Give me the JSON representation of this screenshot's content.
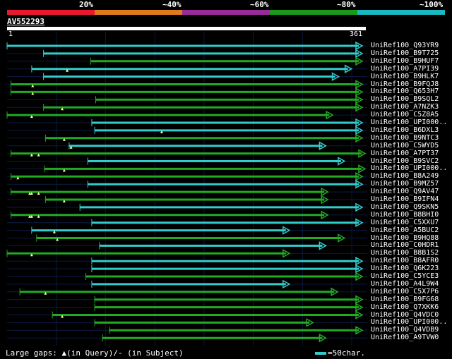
{
  "colors": {
    "scale": [
      "#e8182e",
      "#e07a1e",
      "#9a2a9a",
      "#1a9a1a",
      "#1ab8c0"
    ],
    "hit_cyan": "#33cccc",
    "hit_green": "#22aa22",
    "grid": "#0a1a3a",
    "gap_marker": "#ffff99"
  },
  "header": {
    "pct_labels": [
      "20%",
      "~40%",
      "~60%",
      "~80%",
      "~100%"
    ],
    "query_name": "AV552293",
    "ruler_start": "1",
    "ruler_end": "361"
  },
  "hits": [
    {
      "label": "UniRef100_Q93YR9",
      "start": 1,
      "end": 361,
      "color": "cyan",
      "gaps": []
    },
    {
      "label": "UniRef100_B9T725",
      "start": 38,
      "end": 361,
      "color": "cyan",
      "gaps": []
    },
    {
      "label": "UniRef100_B9HUF7",
      "start": 86,
      "end": 361,
      "color": "green",
      "gaps": []
    },
    {
      "label": "UniRef100_A7PI39",
      "start": 26,
      "end": 350,
      "color": "cyan",
      "gaps": [
        62
      ]
    },
    {
      "label": "UniRef100_B9HLK7",
      "start": 38,
      "end": 337,
      "color": "cyan",
      "gaps": []
    },
    {
      "label": "UniRef100_B9FQJ8",
      "start": 5,
      "end": 361,
      "color": "green",
      "gaps": [
        27
      ]
    },
    {
      "label": "UniRef100_Q653H7",
      "start": 5,
      "end": 361,
      "color": "green",
      "gaps": [
        27
      ]
    },
    {
      "label": "UniRef100_B9SQL2",
      "start": 91,
      "end": 361,
      "color": "green",
      "gaps": []
    },
    {
      "label": "UniRef100_A7NZK3",
      "start": 38,
      "end": 361,
      "color": "green",
      "gaps": [
        57
      ]
    },
    {
      "label": "UniRef100_C5Z8A5",
      "start": 1,
      "end": 331,
      "color": "green",
      "gaps": [
        26
      ]
    },
    {
      "label": "UniRef100_UPI000..",
      "start": 87,
      "end": 361,
      "color": "cyan",
      "gaps": []
    },
    {
      "label": "UniRef100_B6DXL3",
      "start": 90,
      "end": 361,
      "color": "cyan",
      "gaps": [
        158
      ]
    },
    {
      "label": "UniRef100_B9NTC3",
      "start": 40,
      "end": 361,
      "color": "green",
      "gaps": [
        59
      ]
    },
    {
      "label": "UniRef100_C5WYD5",
      "start": 64,
      "end": 324,
      "color": "cyan",
      "gaps": [
        66
      ]
    },
    {
      "label": "UniRef100_A7PT37",
      "start": 5,
      "end": 364,
      "color": "green",
      "gaps": [
        26,
        33
      ]
    },
    {
      "label": "UniRef100_B9SVC2",
      "start": 83,
      "end": 343,
      "color": "cyan",
      "gaps": []
    },
    {
      "label": "UniRef100_UPI000..",
      "start": 39,
      "end": 364,
      "color": "green",
      "gaps": [
        59
      ]
    },
    {
      "label": "UniRef100_B8A249",
      "start": 5,
      "end": 361,
      "color": "green",
      "gaps": [
        12
      ]
    },
    {
      "label": "UniRef100_B9MZ57",
      "start": 83,
      "end": 361,
      "color": "cyan",
      "gaps": []
    },
    {
      "label": "UniRef100_Q9AV47",
      "start": 5,
      "end": 326,
      "color": "green",
      "gaps": [
        24,
        26,
        33
      ]
    },
    {
      "label": "UniRef100_B9IFN4",
      "start": 40,
      "end": 326,
      "color": "green",
      "gaps": [
        59
      ]
    },
    {
      "label": "UniRef100_Q9SKN5",
      "start": 75,
      "end": 361,
      "color": "cyan",
      "gaps": []
    },
    {
      "label": "UniRef100_B8BHI0",
      "start": 5,
      "end": 326,
      "color": "green",
      "gaps": [
        24,
        26,
        33
      ]
    },
    {
      "label": "UniRef100_C5XXU7",
      "start": 87,
      "end": 361,
      "color": "cyan",
      "gaps": []
    },
    {
      "label": "UniRef100_A5BUC2",
      "start": 26,
      "end": 287,
      "color": "cyan",
      "gaps": [
        49
      ]
    },
    {
      "label": "UniRef100_B9HQ88",
      "start": 31,
      "end": 343,
      "color": "green",
      "gaps": [
        52
      ]
    },
    {
      "label": "UniRef100_C0HDR1",
      "start": 95,
      "end": 324,
      "color": "cyan",
      "gaps": []
    },
    {
      "label": "UniRef100_B8B1S2",
      "start": 1,
      "end": 287,
      "color": "green",
      "gaps": [
        26
      ]
    },
    {
      "label": "UniRef100_B8AFR0",
      "start": 87,
      "end": 361,
      "color": "cyan",
      "gaps": []
    },
    {
      "label": "UniRef100_Q6K223",
      "start": 87,
      "end": 361,
      "color": "cyan",
      "gaps": []
    },
    {
      "label": "UniRef100_C5YCE3",
      "start": 81,
      "end": 361,
      "color": "green",
      "gaps": []
    },
    {
      "label": "UniRef100_A4L9W4",
      "start": 87,
      "end": 287,
      "color": "cyan",
      "gaps": []
    },
    {
      "label": "UniRef100_C5X7P6",
      "start": 14,
      "end": 336,
      "color": "green",
      "gaps": [
        40
      ]
    },
    {
      "label": "UniRef100_B9FG68",
      "start": 90,
      "end": 361,
      "color": "green",
      "gaps": []
    },
    {
      "label": "UniRef100_Q7XKK6",
      "start": 90,
      "end": 361,
      "color": "green",
      "gaps": []
    },
    {
      "label": "UniRef100_Q4VDC0",
      "start": 47,
      "end": 361,
      "color": "green",
      "gaps": [
        57
      ]
    },
    {
      "label": "UniRef100_UPI000..",
      "start": 90,
      "end": 311,
      "color": "green",
      "gaps": []
    },
    {
      "label": "UniRef100_Q4VDB9",
      "start": 105,
      "end": 361,
      "color": "green",
      "gaps": []
    },
    {
      "label": "UniRef100_A9TVW0",
      "start": 98,
      "end": 324,
      "color": "green",
      "gaps": []
    }
  ],
  "legend": {
    "text": "Large gaps: ▲(in Query)/- (in Subject)",
    "unit": "=50char."
  }
}
